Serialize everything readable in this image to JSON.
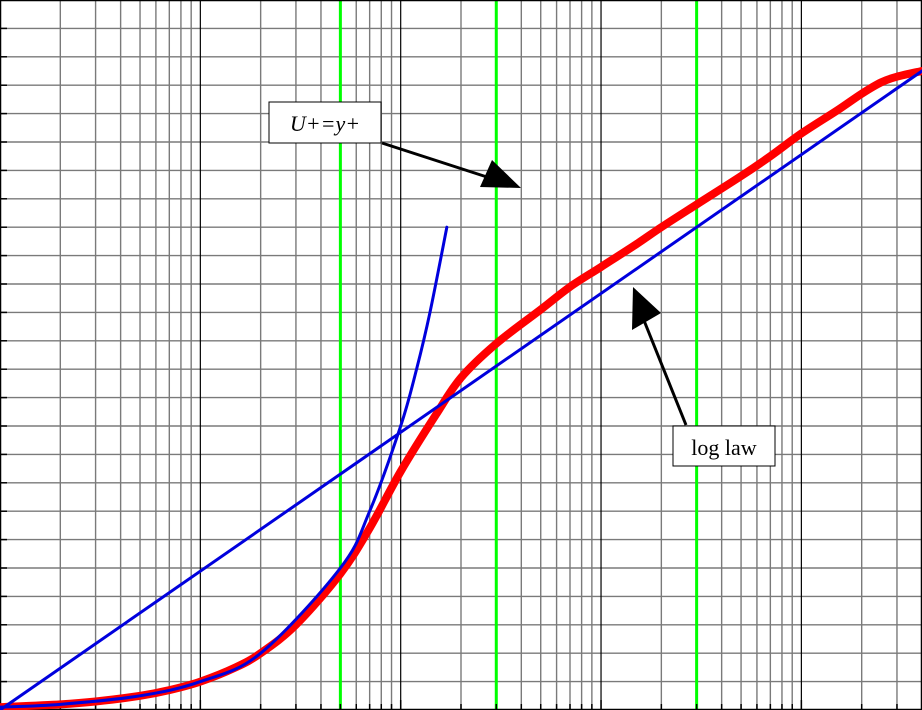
{
  "chart_data": {
    "type": "line",
    "title": "",
    "xlabel": "",
    "ylabel": "",
    "x_scale": "log",
    "xlim": [
      0.1,
      4000
    ],
    "ylim": [
      0,
      25
    ],
    "grid": true,
    "series": [
      {
        "key": "universal_profile",
        "color": "#ff0000",
        "x": [
          0.1,
          0.2,
          0.3,
          0.5,
          0.7,
          1,
          1.5,
          2,
          3,
          5,
          7,
          10,
          15,
          20,
          30,
          50,
          70,
          100,
          150,
          200,
          300,
          500,
          700,
          1000,
          1500,
          2000,
          2500,
          3000,
          4000
        ],
        "y": [
          0.1,
          0.2,
          0.3,
          0.5,
          0.7,
          1.0,
          1.5,
          2.0,
          3.0,
          4.8,
          6.4,
          8.4,
          10.4,
          11.7,
          12.9,
          14.1,
          14.9,
          15.6,
          16.4,
          17.0,
          17.8,
          18.8,
          19.5,
          20.3,
          21.1,
          21.7,
          22.1,
          22.3,
          22.5
        ]
      },
      {
        "key": "linear_law",
        "color": "#0000dd",
        "x": [
          0.1,
          0.2,
          0.5,
          1,
          2,
          5,
          7,
          10,
          12,
          14,
          17
        ],
        "y": [
          0.1,
          0.2,
          0.5,
          1,
          2,
          5,
          7,
          10,
          12,
          14,
          17
        ]
      },
      {
        "key": "log_law",
        "color": "#0000dd",
        "x": [
          0.1,
          4000
        ],
        "y": [
          0.0,
          22.5
        ]
      }
    ],
    "vertical_lines": {
      "color": "#00ff00",
      "x": [
        5,
        30,
        300
      ]
    },
    "annotations": [
      {
        "text": "U+=y+",
        "series": "linear_law"
      },
      {
        "text": "log law",
        "series": "log_law"
      }
    ]
  }
}
